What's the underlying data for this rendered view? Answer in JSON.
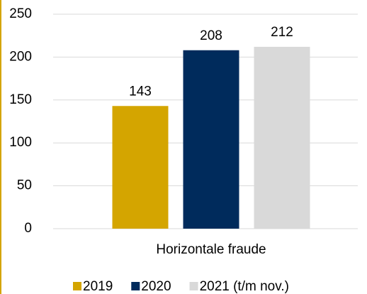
{
  "chart_data": {
    "type": "bar",
    "categories": [
      "Horizontale fraude"
    ],
    "series": [
      {
        "name": "2019",
        "color": "#d4a500",
        "values": [
          143
        ]
      },
      {
        "name": "2020",
        "color": "#002b5c",
        "values": [
          208
        ]
      },
      {
        "name": "2021 (t/m nov.)",
        "color": "#d9d9d9",
        "values": [
          212
        ]
      }
    ],
    "ylim": [
      0,
      250
    ],
    "yticks": [
      0,
      50,
      100,
      150,
      200,
      250
    ],
    "grid": true,
    "legend": "bottom"
  }
}
